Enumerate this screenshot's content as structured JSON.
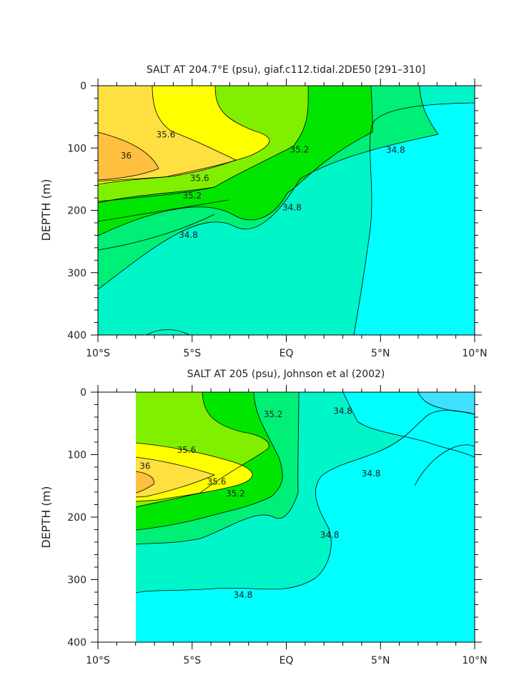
{
  "chart_data": [
    {
      "type": "contour",
      "title": "SALT AT 204.7°E (psu), giaf.c112.tidal.2DE50 [291–310]",
      "ylabel": "DEPTH (m)",
      "xlabel": "",
      "x_range": [
        -10,
        10
      ],
      "y_range": [
        0,
        400
      ],
      "y_inverted": true,
      "x_ticks": [
        {
          "value": -10,
          "label": "10°S"
        },
        {
          "value": -5,
          "label": "5°S"
        },
        {
          "value": 0,
          "label": "EQ"
        },
        {
          "value": 5,
          "label": "5°N"
        },
        {
          "value": 10,
          "label": "10°N"
        }
      ],
      "y_ticks": [
        {
          "value": 0,
          "label": "0"
        },
        {
          "value": 100,
          "label": "100"
        },
        {
          "value": 200,
          "label": "200"
        },
        {
          "value": 300,
          "label": "300"
        },
        {
          "value": 400,
          "label": "400"
        }
      ],
      "contour_levels": [
        34.6,
        34.8,
        35.0,
        35.2,
        35.4,
        35.6,
        35.8,
        36.0
      ],
      "level_colors": [
        "#00ffff",
        "#00f5c8",
        "#00ef76",
        "#00e600",
        "#80f000",
        "#ffff00",
        "#ffe040",
        "#ffc040"
      ],
      "labeled_contours": [
        {
          "label": "35.6",
          "x": -6.4,
          "y": 83
        },
        {
          "label": "36",
          "x": -8.5,
          "y": 117
        },
        {
          "label": "35.6",
          "x": -4.6,
          "y": 153
        },
        {
          "label": "35.2",
          "x": -5.0,
          "y": 181
        },
        {
          "label": "34.8",
          "x": -5.2,
          "y": 244
        },
        {
          "label": "35.2",
          "x": 0.7,
          "y": 107
        },
        {
          "label": "34.8",
          "x": 0.3,
          "y": 200
        },
        {
          "label": "34.8",
          "x": 5.8,
          "y": 108
        }
      ]
    },
    {
      "type": "contour",
      "title": "SALT AT 205 (psu), Johnson et al (2002)",
      "ylabel": "DEPTH (m)",
      "xlabel": "",
      "x_range": [
        -10,
        10
      ],
      "y_range": [
        0,
        400
      ],
      "y_inverted": true,
      "data_x_range": [
        -8,
        10
      ],
      "x_ticks": [
        {
          "value": -10,
          "label": "10°S"
        },
        {
          "value": -5,
          "label": "5°S"
        },
        {
          "value": 0,
          "label": "EQ"
        },
        {
          "value": 5,
          "label": "5°N"
        },
        {
          "value": 10,
          "label": "10°N"
        }
      ],
      "y_ticks": [
        {
          "value": 0,
          "label": "0"
        },
        {
          "value": 100,
          "label": "100"
        },
        {
          "value": 200,
          "label": "200"
        },
        {
          "value": 300,
          "label": "300"
        },
        {
          "value": 400,
          "label": "400"
        }
      ],
      "contour_levels": [
        34.4,
        34.6,
        34.8,
        35.0,
        35.2,
        35.4,
        35.6,
        35.8,
        36.0
      ],
      "level_colors": [
        "#40e0ff",
        "#00ffff",
        "#00f5c8",
        "#00ef76",
        "#00e600",
        "#80f000",
        "#ffff00",
        "#ffe040",
        "#ffc040"
      ],
      "labeled_contours": [
        {
          "label": "35.6",
          "x": -5.3,
          "y": 97
        },
        {
          "label": "36",
          "x": -7.5,
          "y": 123
        },
        {
          "label": "35.6",
          "x": -3.7,
          "y": 148
        },
        {
          "label": "35.2",
          "x": -2.7,
          "y": 167
        },
        {
          "label": "35.2",
          "x": -0.7,
          "y": 40
        },
        {
          "label": "34.8",
          "x": 3.0,
          "y": 35
        },
        {
          "label": "34.8",
          "x": 4.5,
          "y": 135
        },
        {
          "label": "34.8",
          "x": 2.3,
          "y": 233
        },
        {
          "label": "34.8",
          "x": -2.3,
          "y": 329
        }
      ]
    }
  ]
}
